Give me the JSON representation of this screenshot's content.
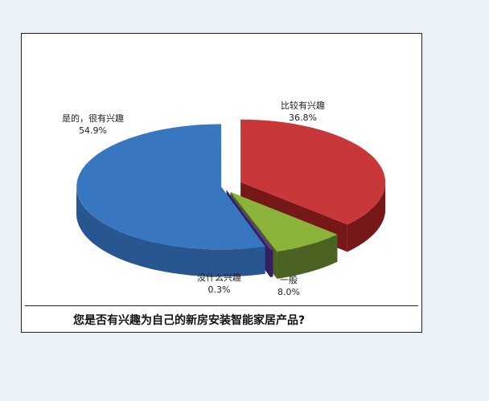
{
  "chart_data": {
    "type": "pie",
    "style": "3d-exploded",
    "title": "您是否有兴趣为自己的新房安装智能家居产品?",
    "slices": [
      {
        "label": "比较有兴趣",
        "value": 36.8,
        "value_label": "36.8%",
        "color": "#c83838",
        "side_color": "#761818"
      },
      {
        "label": "一般",
        "value": 8.0,
        "value_label": "8.0%",
        "color": "#8cb43a",
        "side_color": "#4a6222"
      },
      {
        "label": "没什么兴趣",
        "value": 0.3,
        "value_label": "0.3%",
        "color": "#5a3a8c",
        "side_color": "#35205e"
      },
      {
        "label": "是的，很有兴趣",
        "value": 54.9,
        "value_label": "54.9%",
        "color": "#3876c0",
        "side_color": "#285690"
      }
    ]
  }
}
